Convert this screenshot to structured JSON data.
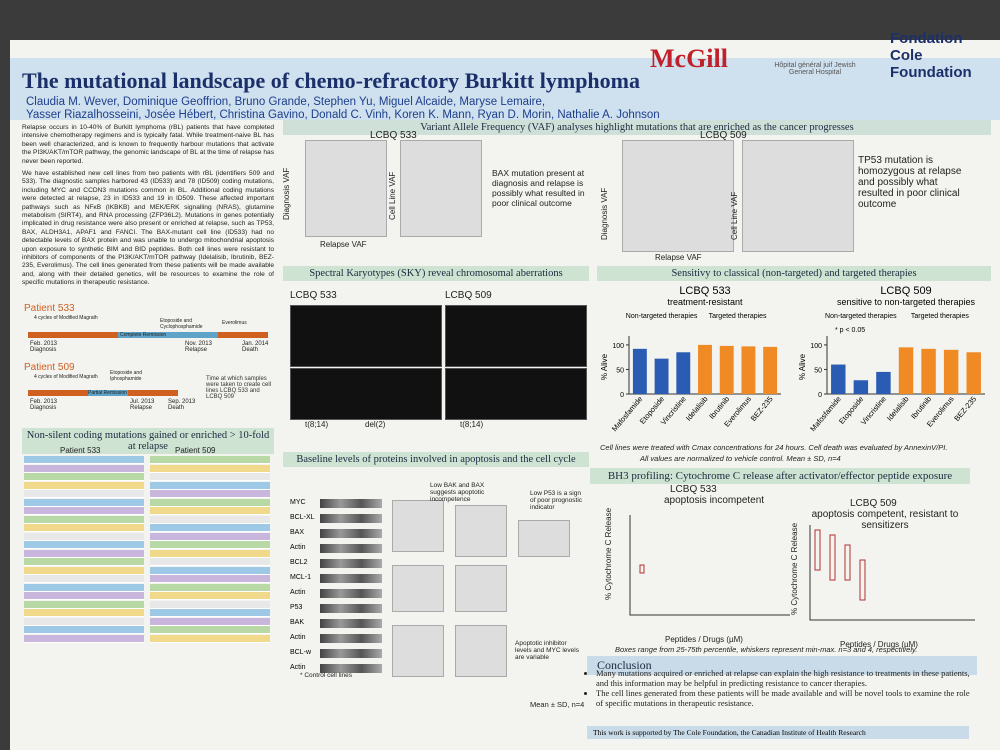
{
  "header": {
    "title": "The mutational landscape of chemo-refractory Burkitt lymphoma",
    "authors": [
      "Claudia M. Wever, Dominique Geoffrion, Bruno Grande, Stephen Yu, Miguel Alcaide, Maryse Lemaire,",
      "Yasser Riazalhosseini, Josée Hébert, Christina Gavino, Donald C. Vinh, Koren K. Mann, Ryan D. Morin, Nathalie A. Johnson"
    ],
    "logos": [
      "McGill",
      "Hôpital général juif Jewish General Hospital",
      "Fondation Cole Foundation"
    ]
  },
  "intro": {
    "paragraphs": [
      "Relapse occurs in 10-40% of Burkitt lymphoma (rBL) patients that have completed intensive chemotherapy regimens and is typically fatal. While treatment-naive BL has been well characterized, and is known to frequently harbour mutations that activate the PI3K/AKT/mTOR pathway, the genomic landscape of BL at the time of relapse has never been reported.",
      "We have established new cell lines from two patients with rBL (identifiers 509 and 533). The diagnostic samples harbored 43 (ID533) and 78 (ID509) coding mutations, including MYC and CCDN3 mutations common in BL. Additional coding mutations were detected at relapse, 23 in ID533 and 19 in ID509. These affected important pathways such as NFκB (IKBKB) and MEK/ERK signalling (NRAS), glutamine metabolism (SIRT4), and RNA processing (ZFP36L2). Mutations in genes potentially implicated in drug resistance were also present or enriched at relapse, such as TP53, BAX, ALDH3A1, APAF1 and FANCI. The BAX-mutant cell line (ID533) had no detectable levels of BAX protein and was unable to undergo mitochondrial apoptosis upon exposure to synthetic BIM and BID peptides. Both cell lines were resistant to inhibitors of components of the PI3K/AKT/mTOR pathway (Idelalisib, Ibrutinib, BEZ-235, Everolimus). The cell lines generated from these patients will be made available and, along with their detailed genetics, will be resources to examine the role of specific mutations in therapeutic resistance."
    ]
  },
  "timeline": {
    "patients": [
      {
        "name": "Patient 533",
        "treatment": "4 cycles of Modified Magrath",
        "phase": "Complete Remission",
        "drugs": [
          "Etoposide and Cyclophosphamide",
          "Everolimus"
        ],
        "events": [
          "Feb. 2013 Diagnosis",
          "Nov. 2013 Relapse",
          "Jan. 2014 Death"
        ]
      },
      {
        "name": "Patient 509",
        "treatment": "4 cycles of Modified Magrath",
        "phase": "Partial Remission",
        "drugs": [
          "Etoposide and Iphosphamide"
        ],
        "events": [
          "Feb. 2013 Diagnosis",
          "Jul. 2013 Relapse",
          "Sep. 2013 Death"
        ]
      }
    ],
    "legend": "Time at which samples were taken to create cell lines LCBQ 533 and LCBQ 509"
  },
  "mutations": {
    "title": "Non-silent coding mutations gained or enriched > 10-fold at relapse",
    "tables": [
      "Patient 533",
      "Patient 509"
    ]
  },
  "vaf": {
    "title": "Variant Allele Frequency (VAF) analyses highlight mutations that are enriched as the cancer progresses",
    "panels": [
      "LCBQ 533",
      "LCBQ 509"
    ],
    "axes": [
      "Diagnosis VAF",
      "Cell Line VAF",
      "Relapse VAF"
    ],
    "notes": [
      "BAX mutation present at diagnosis and relapse is possibly what resulted in poor clinical outcome",
      "TP53 mutation is homozygous at relapse and possibly what resulted in poor clinical outcome"
    ]
  },
  "sky": {
    "title": "Spectral Karyotypes (SKY) reveal chromosomal aberrations",
    "panels": [
      "LCBQ 533",
      "LCBQ 509"
    ],
    "labels": [
      "t(8;14)",
      "del(2)",
      "t(8;14)"
    ]
  },
  "proteins": {
    "title": "Baseline levels of proteins involved in apoptosis and the cell cycle",
    "blots": [
      "MYC",
      "BCL-XL",
      "BAX",
      "Actin",
      "BCL2",
      "MCL-1",
      "Actin",
      "P53",
      "BAK",
      "Actin",
      "BCL-w",
      "Actin"
    ],
    "footnote": "* Control cell lines",
    "notes": [
      "Low BAK and BAX suggests apoptotic incompetence",
      "Low P53 is a sign of poor prognostic indicator",
      "Apoptotic inhibitor levels and MYC levels are variable"
    ],
    "stats": "Mean ± SD, n=4"
  },
  "sensitivity": {
    "title": "Sensitivy to classical (non-targeted) and targeted therapies",
    "charts": [
      {
        "title": "LCBQ 533",
        "subtitle": "treatment-resistant",
        "groups": [
          "Non-targeted therapies",
          "Targeted therapies"
        ],
        "ylabel": "% Alive",
        "ylim": [
          0,
          110
        ],
        "yticks": [
          0,
          50,
          100
        ],
        "categories": [
          "Mafosfamide",
          "Etoposide",
          "Vincristine",
          "Idelalisib",
          "Ibrutinib",
          "Everolimus",
          "BEZ-235"
        ],
        "values": [
          92,
          72,
          85,
          100,
          98,
          97,
          96
        ],
        "colors": [
          "#2a5cb4",
          "#2a5cb4",
          "#2a5cb4",
          "#f08a24",
          "#f08a24",
          "#f08a24",
          "#f08a24"
        ]
      },
      {
        "title": "LCBQ 509",
        "subtitle": "sensitive to non-targeted therapies",
        "groups": [
          "Non-targeted therapies",
          "Targeted therapies"
        ],
        "ylabel": "% Alive",
        "ylim": [
          0,
          110
        ],
        "yticks": [
          0,
          50,
          100
        ],
        "note": "* p < 0.05",
        "categories": [
          "Mafosfamide",
          "Etoposide",
          "Vincristine",
          "Idelalisib",
          "Ibrutinib",
          "Everolimus",
          "BEZ-235"
        ],
        "values": [
          60,
          28,
          45,
          95,
          92,
          90,
          85
        ],
        "colors": [
          "#2a5cb4",
          "#2a5cb4",
          "#2a5cb4",
          "#f08a24",
          "#f08a24",
          "#f08a24",
          "#f08a24"
        ]
      }
    ],
    "footnote": [
      "Cell lines were treated with Cmax concentrations for 24 hours. Cell death was evaluated by AnnexinV/PI.",
      "All values are normalized to vehicle control. Mean ± SD, n=4"
    ]
  },
  "bh3": {
    "title": "BH3 profiling: Cytochrome C release after activator/effector peptide exposure",
    "panels": [
      {
        "title": "LCBQ 533",
        "subtitle": "apoptosis incompetent"
      },
      {
        "title": "LCBQ 509",
        "subtitle": "apoptosis competent, resistant to sensitizers"
      }
    ],
    "ylabel": "% Cytochrome C Release",
    "xlabel": "Peptides / Drugs (µM)",
    "footnote": "Boxes range from 25-75th percentile, whiskers represent min-max. n=3 and 4, respectively."
  },
  "conclusion": {
    "title": "Conclusion",
    "bullets": [
      "Many mutations acquired or enriched at relapse can explain the high resistance to treatments in these patients, and this information may be helpful in predicting resistance to cancer therapies.",
      "The cell lines generated from these patients will be made available and will be novel tools to examine the role of specific mutations in therapeutic resistance."
    ],
    "funding": "This work is supported by The Cole Foundation, the Canadian Institute of Health Research"
  }
}
